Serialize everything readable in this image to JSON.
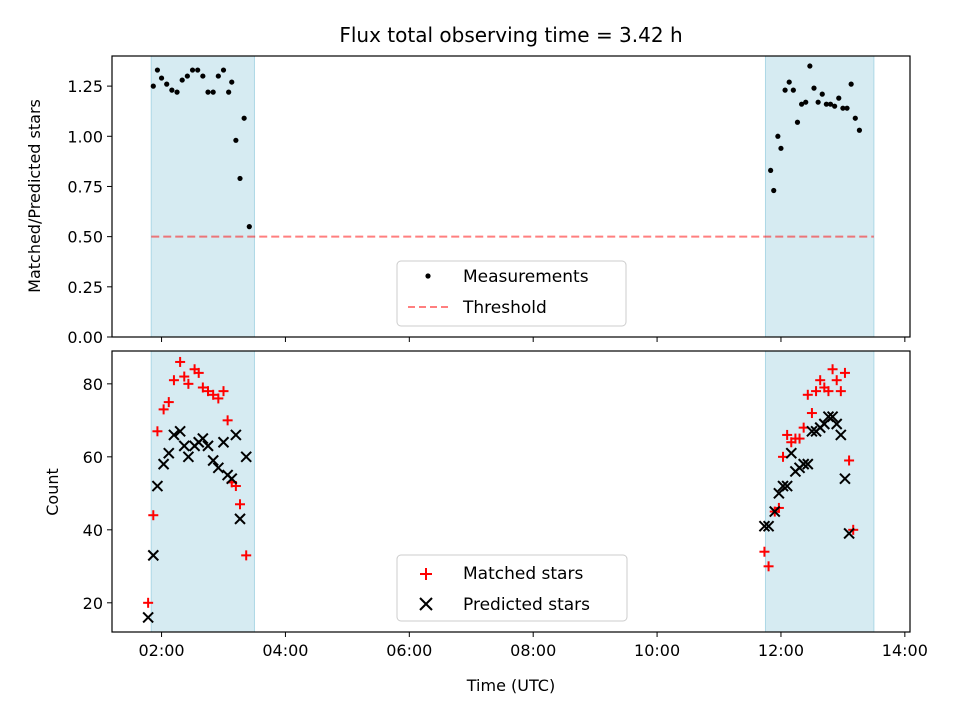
{
  "figure": {
    "title": "Flux total observing time = 3.42 h"
  },
  "chart_data": [
    {
      "type": "scatter",
      "ylabel": "Matched/Predicted stars",
      "xlabel": "",
      "xlim": [
        "01:12",
        "14:05"
      ],
      "ylim": [
        0,
        1.4
      ],
      "yticks": [
        "0.00",
        "0.25",
        "0.50",
        "0.75",
        "1.00",
        "1.25"
      ],
      "yticks_values": [
        0,
        0.25,
        0.5,
        0.75,
        1.0,
        1.25
      ],
      "xticks_values": [
        "02:00",
        "04:00",
        "06:00",
        "08:00",
        "10:00",
        "12:00",
        "14:00"
      ],
      "shaded_intervals": [
        [
          "01:50",
          "03:30"
        ],
        [
          "11:45",
          "13:30"
        ]
      ],
      "shade_color": "#add8e6",
      "legend": {
        "placement": "lower center",
        "entries": [
          "Measurements",
          "Threshold"
        ]
      },
      "threshold": {
        "name": "Threshold",
        "y": 0.5,
        "x_range": [
          "01:50",
          "13:30"
        ],
        "color": "#ff0000",
        "style": "dashed"
      },
      "series": [
        {
          "name": "Measurements",
          "color": "#000000",
          "marker": "dot",
          "x": [
            "01:52",
            "01:56",
            "02:00",
            "02:05",
            "02:10",
            "02:15",
            "02:20",
            "02:25",
            "02:30",
            "02:35",
            "02:40",
            "02:45",
            "02:50",
            "02:55",
            "03:00",
            "03:05",
            "03:08",
            "03:12",
            "03:16",
            "03:20",
            "03:25",
            "03:30",
            "11:50",
            "11:53",
            "11:57",
            "12:00",
            "12:04",
            "12:08",
            "12:12",
            "12:16",
            "12:20",
            "12:24",
            "12:28",
            "12:32",
            "12:36",
            "12:40",
            "12:44",
            "12:48",
            "12:52",
            "12:56",
            "13:00",
            "13:04",
            "13:08",
            "13:12",
            "13:16",
            "13:20",
            "13:24",
            "13:28"
          ],
          "y": [
            1.25,
            1.33,
            1.29,
            1.26,
            1.23,
            1.22,
            1.28,
            1.3,
            1.33,
            1.33,
            1.3,
            1.22,
            1.22,
            1.3,
            1.33,
            1.22,
            1.27,
            0.98,
            0.79,
            1.09,
            0.55,
            null,
            0.83,
            0.73,
            1.0,
            0.94,
            1.23,
            1.27,
            1.23,
            1.07,
            1.16,
            1.17,
            1.35,
            1.24,
            1.17,
            1.21,
            1.16,
            1.16,
            1.15,
            1.19,
            1.14,
            1.14,
            1.26,
            1.09,
            1.03,
            null,
            null,
            null
          ]
        }
      ]
    },
    {
      "type": "scatter",
      "ylabel": "Count",
      "xlabel": "Time (UTC)",
      "xlim": [
        "01:12",
        "14:05"
      ],
      "ylim": [
        12,
        89
      ],
      "yticks": [
        "20",
        "40",
        "60",
        "80"
      ],
      "yticks_values": [
        20,
        40,
        60,
        80
      ],
      "xticks": [
        "02:00",
        "04:00",
        "06:00",
        "08:00",
        "10:00",
        "12:00",
        "14:00"
      ],
      "shaded_intervals": [
        [
          "01:50",
          "03:30"
        ],
        [
          "11:45",
          "13:30"
        ]
      ],
      "legend": {
        "placement": "lower center",
        "entries": [
          "Matched stars",
          "Predicted stars"
        ]
      },
      "series": [
        {
          "name": "Matched stars",
          "color": "#ff0000",
          "marker": "plus",
          "x": [
            "01:47",
            "01:52",
            "01:56",
            "02:02",
            "02:07",
            "02:12",
            "02:18",
            "02:22",
            "02:26",
            "02:32",
            "02:36",
            "02:40",
            "02:45",
            "02:50",
            "02:55",
            "03:00",
            "03:04",
            "03:08",
            "03:12",
            "03:16",
            "03:22",
            "03:28",
            "11:44",
            "11:48",
            "11:54",
            "11:58",
            "12:02",
            "12:06",
            "12:10",
            "12:14",
            "12:18",
            "12:22",
            "12:26",
            "12:30",
            "12:34",
            "12:38",
            "12:42",
            "12:46",
            "12:50",
            "12:54",
            "12:58",
            "13:02",
            "13:06",
            "13:10",
            "13:14",
            "13:18",
            "13:22",
            "13:26",
            "13:30"
          ],
          "y": [
            20,
            44,
            67,
            73,
            75,
            81,
            86,
            82,
            80,
            84,
            83,
            79,
            78,
            77,
            76,
            78,
            70,
            53,
            52,
            47,
            33,
            null,
            34,
            30,
            45,
            46,
            60,
            66,
            64,
            65,
            65,
            68,
            77,
            72,
            78,
            81,
            79,
            78,
            84,
            81,
            78,
            83,
            59,
            40,
            null,
            null,
            null,
            null,
            null
          ]
        },
        {
          "name": "Predicted stars",
          "color": "#000000",
          "marker": "x",
          "x": [
            "01:47",
            "01:52",
            "01:56",
            "02:02",
            "02:07",
            "02:12",
            "02:18",
            "02:22",
            "02:26",
            "02:32",
            "02:36",
            "02:40",
            "02:45",
            "02:50",
            "02:55",
            "03:00",
            "03:04",
            "03:08",
            "03:12",
            "03:16",
            "03:22",
            "03:28",
            "11:44",
            "11:48",
            "11:54",
            "11:58",
            "12:02",
            "12:06",
            "12:10",
            "12:14",
            "12:18",
            "12:22",
            "12:26",
            "12:30",
            "12:34",
            "12:38",
            "12:42",
            "12:46",
            "12:50",
            "12:54",
            "12:58",
            "13:02",
            "13:06",
            "13:10",
            "13:14",
            "13:18",
            "13:22",
            "13:26",
            "13:30"
          ],
          "y": [
            16,
            33,
            52,
            58,
            61,
            66,
            67,
            63,
            60,
            63,
            64,
            65,
            63,
            59,
            57,
            64,
            55,
            54,
            66,
            43,
            60,
            null,
            41,
            41,
            45,
            50,
            52,
            52,
            61,
            56,
            57,
            58,
            58,
            67,
            67,
            68,
            69,
            71,
            71,
            69,
            66,
            54,
            39,
            null,
            null,
            null,
            null,
            null,
            null
          ]
        }
      ]
    }
  ]
}
